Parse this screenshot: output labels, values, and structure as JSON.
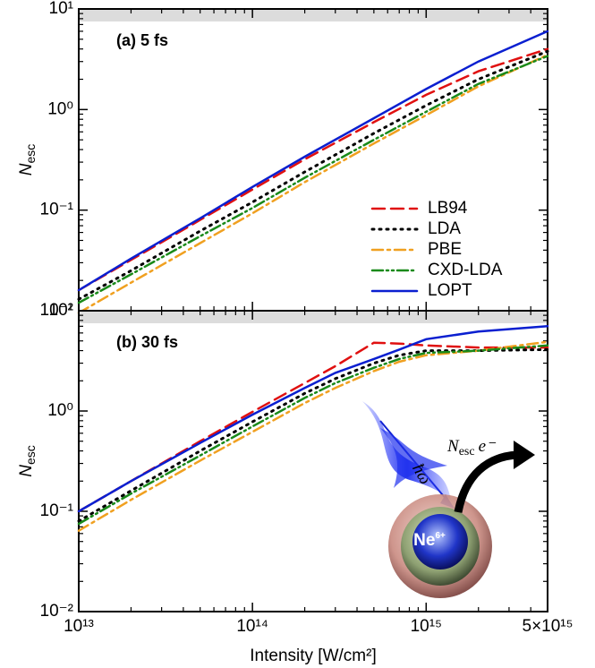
{
  "chart_data": [
    {
      "type": "line",
      "title": "(a) 5 fs",
      "ylabel": "N",
      "ylabel_subscript": "esc",
      "log_x": true,
      "log_y": true,
      "xlim": [
        10000000000000.0,
        5000000000000000.0
      ],
      "ylim": [
        0.01,
        10
      ],
      "yticks": [
        {
          "value": 0.01,
          "label": "10⁻²"
        },
        {
          "value": 0.1,
          "label": "10⁻¹"
        },
        {
          "value": 1,
          "label": "10⁰"
        },
        {
          "value": 10,
          "label": "10¹"
        }
      ],
      "legend": "lower right",
      "x": [
        10000000000000.0,
        20000000000000.0,
        50000000000000.0,
        100000000000000.0,
        200000000000000.0,
        500000000000000.0,
        1000000000000000.0,
        2000000000000000.0,
        5000000000000000.0
      ],
      "series": [
        {
          "name": "LB94",
          "color": "#e01010",
          "dash": "dashed",
          "values": [
            0.016,
            0.032,
            0.08,
            0.16,
            0.32,
            0.75,
            1.4,
            2.4,
            4.0
          ]
        },
        {
          "name": "LDA",
          "color": "#000000",
          "dash": "dotted",
          "values": [
            0.013,
            0.025,
            0.062,
            0.12,
            0.24,
            0.58,
            1.1,
            2.0,
            3.8
          ]
        },
        {
          "name": "PBE",
          "color": "#f0a020",
          "dash": "dashdot",
          "values": [
            0.0095,
            0.019,
            0.047,
            0.093,
            0.19,
            0.46,
            0.88,
            1.7,
            3.5
          ]
        },
        {
          "name": "CXD-LDA",
          "color": "#1a8a1a",
          "dash": "dashdotdot",
          "values": [
            0.012,
            0.023,
            0.055,
            0.105,
            0.21,
            0.5,
            0.95,
            1.8,
            3.4
          ]
        },
        {
          "name": "LOPT",
          "color": "#0a1fd0",
          "dash": "solid",
          "values": [
            0.016,
            0.033,
            0.083,
            0.17,
            0.34,
            0.82,
            1.6,
            3.0,
            6.0
          ]
        }
      ]
    },
    {
      "type": "line",
      "title": "(b) 30 fs",
      "ylabel": "N",
      "ylabel_subscript": "esc",
      "xlabel": "Intensity [W/cm²]",
      "log_x": true,
      "log_y": true,
      "xlim": [
        10000000000000.0,
        5000000000000000.0
      ],
      "ylim": [
        0.01,
        10
      ],
      "xticks": [
        {
          "value": 10000000000000.0,
          "label": "10¹³"
        },
        {
          "value": 100000000000000.0,
          "label": "10¹⁴"
        },
        {
          "value": 1000000000000000.0,
          "label": "10¹⁵"
        },
        {
          "value": 5000000000000000.0,
          "label": "5×10¹⁵"
        }
      ],
      "yticks": [
        {
          "value": 0.01,
          "label": "10⁻²"
        },
        {
          "value": 0.1,
          "label": "10⁻¹"
        },
        {
          "value": 1,
          "label": "10⁰"
        },
        {
          "value": 10,
          "label": "10¹"
        }
      ],
      "annotations": {
        "ion": "Ne",
        "ion_charge": "6+",
        "photon": "ħω",
        "escape": "N",
        "escape_subscript": "esc",
        "electron": "e⁻"
      },
      "x": [
        10000000000000.0,
        20000000000000.0,
        50000000000000.0,
        100000000000000.0,
        200000000000000.0,
        300000000000000.0,
        500000000000000.0,
        700000000000000.0,
        1000000000000000.0,
        2000000000000000.0,
        5000000000000000.0
      ],
      "series": [
        {
          "name": "LB94",
          "color": "#e01010",
          "dash": "dashed",
          "values": [
            0.1,
            0.2,
            0.5,
            0.98,
            1.9,
            2.8,
            4.8,
            4.7,
            4.5,
            4.3,
            4.3
          ]
        },
        {
          "name": "LDA",
          "color": "#000000",
          "dash": "dotted",
          "values": [
            0.08,
            0.16,
            0.4,
            0.78,
            1.5,
            2.1,
            3.0,
            3.6,
            4.0,
            4.0,
            4.1
          ]
        },
        {
          "name": "PBE",
          "color": "#f0a020",
          "dash": "dashdot",
          "values": [
            0.064,
            0.13,
            0.32,
            0.62,
            1.2,
            1.7,
            2.5,
            3.1,
            3.6,
            4.0,
            4.9
          ]
        },
        {
          "name": "CXD-LDA",
          "color": "#1a8a1a",
          "dash": "dashdotdot",
          "values": [
            0.075,
            0.15,
            0.36,
            0.7,
            1.35,
            1.9,
            2.7,
            3.3,
            3.8,
            4.0,
            4.5
          ]
        },
        {
          "name": "LOPT",
          "color": "#0a1fd0",
          "dash": "solid",
          "values": [
            0.1,
            0.2,
            0.48,
            0.92,
            1.7,
            2.4,
            3.3,
            4.1,
            5.2,
            6.2,
            7.0
          ]
        }
      ]
    }
  ]
}
